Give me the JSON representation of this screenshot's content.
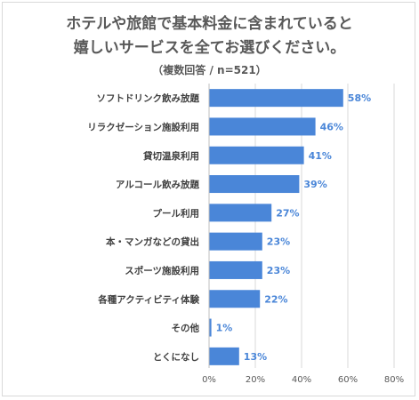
{
  "chart_data": {
    "type": "bar",
    "orientation": "horizontal",
    "title_line1": "ホテルや旅館で基本料金に含まれていると",
    "title_line2": "嬉しいサービスを全てお選びください。",
    "subtitle": "（複数回答 / n=521）",
    "categories": [
      "ソフトドリンク飲み放題",
      "リラクゼーション施設利用",
      "貸切温泉利用",
      "アルコール飲み放題",
      "プール利用",
      "本・マンガなどの貸出",
      "スポーツ施設利用",
      "各種アクティビティ体験",
      "その他",
      "とくになし"
    ],
    "values": [
      58,
      46,
      41,
      39,
      27,
      23,
      23,
      22,
      1,
      13
    ],
    "value_suffix": "%",
    "xlim": [
      0,
      80
    ],
    "xticks": [
      0,
      20,
      40,
      60,
      80
    ],
    "xtick_labels": [
      "0%",
      "20%",
      "40%",
      "60%",
      "80%"
    ],
    "grid": true,
    "bar_color": "#4a86d8",
    "label_color": "#4a86d8"
  }
}
